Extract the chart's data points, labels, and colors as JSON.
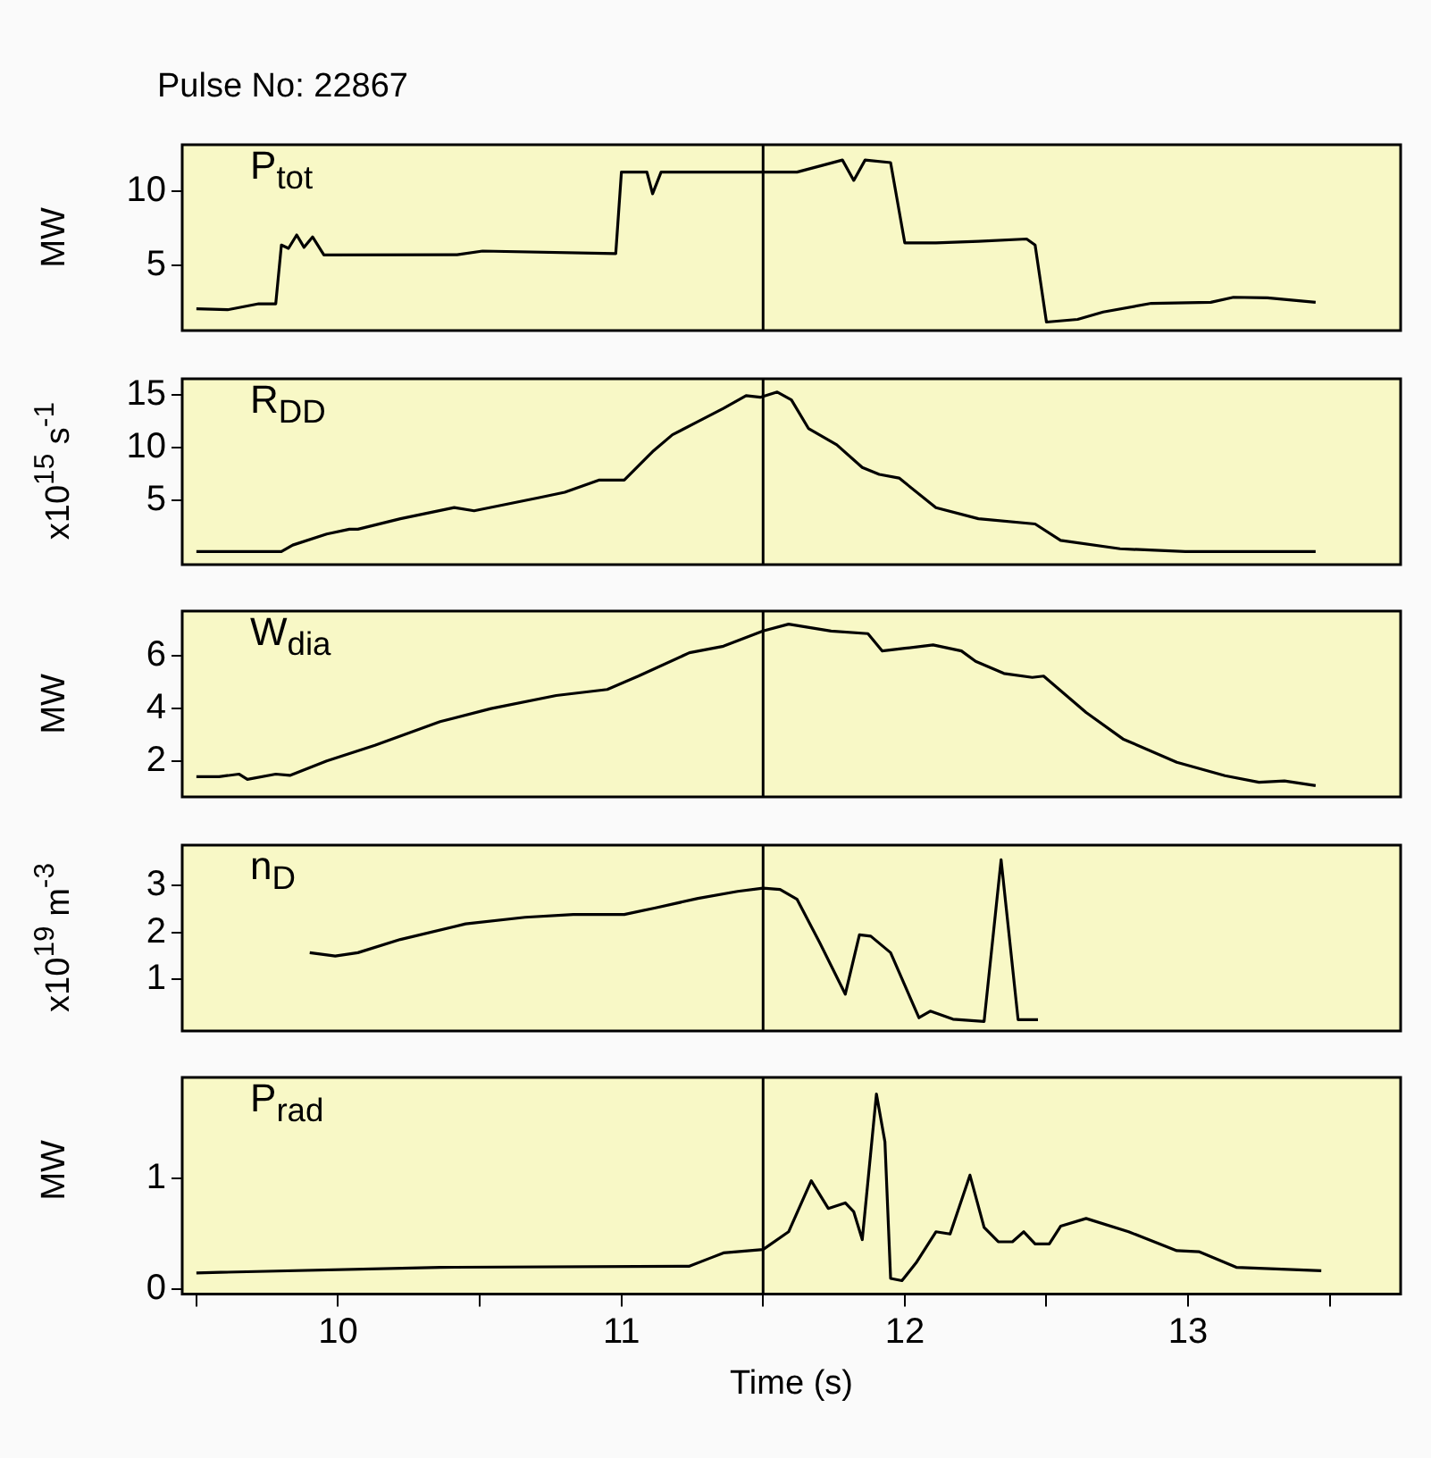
{
  "chart_data": [
    {
      "type": "line",
      "title": "Pulse No: 22867",
      "ylabel": "MW",
      "annotations": [
        "P$_{tot}$"
      ],
      "color": "#000000",
      "xlim": [
        9.45,
        13.75
      ],
      "ylim": [
        0.6,
        13.1
      ],
      "yticks": [
        5,
        10
      ],
      "tick_labels": "y",
      "ref_lines": [
        {
          "axis": "x",
          "value": 11.5
        }
      ],
      "x": [
        9.5,
        9.61,
        9.72,
        9.78,
        9.8,
        9.825,
        9.854,
        9.88,
        9.91,
        9.95,
        10.42,
        10.51,
        10.98,
        11.0,
        11.09,
        11.11,
        11.14,
        11.62,
        11.78,
        11.82,
        11.86,
        11.95,
        12.0,
        12.11,
        12.26,
        12.43,
        12.46,
        12.5,
        12.61,
        12.7,
        12.87,
        13.08,
        13.16,
        13.28,
        13.45
      ],
      "values": [
        2.07,
        2.0,
        2.4,
        2.4,
        6.35,
        6.13,
        7.03,
        6.2,
        6.9,
        5.68,
        5.7,
        5.95,
        5.77,
        11.26,
        11.26,
        9.8,
        11.26,
        11.26,
        12.07,
        10.7,
        12.07,
        11.9,
        6.5,
        6.5,
        6.6,
        6.76,
        6.35,
        1.17,
        1.35,
        1.85,
        2.43,
        2.5,
        2.84,
        2.8,
        2.5
      ]
    },
    {
      "type": "line",
      "ylabel": "x10$^{15}$ s$^{-1}$",
      "annotations": [
        "R$_{DD}$"
      ],
      "color": "#000000",
      "xlim": [
        9.45,
        13.75
      ],
      "ylim": [
        -1.1,
        16.5
      ],
      "yticks": [
        5,
        10,
        15
      ],
      "tick_labels": "y",
      "ref_lines": [
        {
          "axis": "x",
          "value": 11.5
        }
      ],
      "x": [
        9.5,
        9.8,
        9.84,
        9.96,
        10.04,
        10.07,
        10.22,
        10.41,
        10.48,
        10.71,
        10.8,
        10.92,
        11.01,
        11.11,
        11.18,
        11.27,
        11.36,
        11.44,
        11.49,
        11.55,
        11.6,
        11.66,
        11.76,
        11.85,
        11.91,
        11.98,
        12.11,
        12.26,
        12.46,
        12.55,
        12.76,
        12.99,
        13.45
      ],
      "values": [
        0.13,
        0.13,
        0.75,
        1.8,
        2.25,
        2.25,
        3.25,
        4.3,
        4.0,
        5.25,
        5.75,
        6.9,
        6.9,
        9.6,
        11.2,
        12.45,
        13.7,
        14.9,
        14.75,
        15.25,
        14.5,
        11.8,
        10.25,
        8.1,
        7.45,
        7.1,
        4.3,
        3.25,
        2.75,
        1.2,
        0.4,
        0.13,
        0.13
      ]
    },
    {
      "type": "line",
      "ylabel": "MW",
      "annotations": [
        "W$_{dia}$"
      ],
      "color": "#000000",
      "xlim": [
        9.45,
        13.75
      ],
      "ylim": [
        0.63,
        7.72
      ],
      "yticks": [
        2,
        4,
        6
      ],
      "tick_labels": "y",
      "ref_lines": [
        {
          "axis": "x",
          "value": 11.5
        }
      ],
      "x": [
        9.5,
        9.58,
        9.65,
        9.68,
        9.78,
        9.83,
        9.96,
        10.13,
        10.36,
        10.54,
        10.77,
        10.95,
        11.06,
        11.24,
        11.36,
        11.5,
        11.59,
        11.74,
        11.87,
        11.92,
        12.0,
        12.1,
        12.2,
        12.25,
        12.35,
        12.45,
        12.49,
        12.64,
        12.77,
        12.96,
        13.13,
        13.25,
        13.34,
        13.45
      ],
      "values": [
        1.4,
        1.4,
        1.5,
        1.3,
        1.5,
        1.45,
        2.0,
        2.6,
        3.5,
        4.0,
        4.5,
        4.73,
        5.24,
        6.13,
        6.38,
        6.96,
        7.22,
        6.96,
        6.86,
        6.2,
        6.3,
        6.43,
        6.2,
        5.8,
        5.34,
        5.19,
        5.24,
        3.85,
        2.84,
        1.95,
        1.44,
        1.19,
        1.24,
        1.06
      ]
    },
    {
      "type": "line",
      "ylabel": "x10$^{19}$ m$^{-3}$",
      "annotations": [
        "n$_{D}$"
      ],
      "color": "#000000",
      "xlim": [
        9.45,
        13.75
      ],
      "ylim": [
        -0.09,
        3.85
      ],
      "yticks": [
        1,
        2,
        3
      ],
      "tick_labels": "y",
      "ref_lines": [
        {
          "axis": "x",
          "value": 11.5
        }
      ],
      "x": [
        9.9,
        9.99,
        10.07,
        10.22,
        10.45,
        10.66,
        10.83,
        11.01,
        11.12,
        11.27,
        11.41,
        11.5,
        11.56,
        11.62,
        11.7,
        11.79,
        11.84,
        11.88,
        11.95,
        12.05,
        12.09,
        12.17,
        12.28,
        12.34,
        12.4,
        12.47
      ],
      "values": [
        1.57,
        1.5,
        1.57,
        1.85,
        2.18,
        2.32,
        2.38,
        2.38,
        2.52,
        2.72,
        2.87,
        2.94,
        2.91,
        2.7,
        1.78,
        0.69,
        1.95,
        1.92,
        1.57,
        0.19,
        0.33,
        0.16,
        0.11,
        3.54,
        0.15,
        0.15
      ]
    },
    {
      "type": "line",
      "ylabel": "MW",
      "xlabel": "Time (s)",
      "annotations": [
        "P$_{rad}$"
      ],
      "color": "#000000",
      "xlim": [
        9.45,
        13.75
      ],
      "ylim": [
        -0.04,
        1.91
      ],
      "yticks": [
        0,
        1
      ],
      "xticks": [
        {
          "value": 9.5,
          "label": null
        },
        10,
        {
          "value": 10.5,
          "label": null
        },
        11,
        {
          "value": 11.5,
          "label": null
        },
        12,
        {
          "value": 12.5,
          "label": null
        },
        13,
        {
          "value": 13.5,
          "label": null
        }
      ],
      "ref_lines": [
        {
          "axis": "x",
          "value": 11.5
        }
      ],
      "x": [
        9.5,
        10.36,
        11.24,
        11.31,
        11.36,
        11.5,
        11.59,
        11.67,
        11.73,
        11.79,
        11.82,
        11.85,
        11.9,
        11.93,
        11.95,
        11.99,
        12.04,
        12.11,
        12.16,
        12.23,
        12.28,
        12.33,
        12.38,
        12.42,
        12.46,
        12.51,
        12.55,
        12.64,
        12.79,
        12.96,
        13.04,
        13.17,
        13.47
      ],
      "values": [
        0.15,
        0.2,
        0.21,
        0.28,
        0.33,
        0.36,
        0.52,
        0.98,
        0.73,
        0.78,
        0.7,
        0.45,
        1.76,
        1.33,
        0.1,
        0.08,
        0.24,
        0.52,
        0.5,
        1.03,
        0.56,
        0.43,
        0.43,
        0.52,
        0.41,
        0.41,
        0.57,
        0.64,
        0.52,
        0.35,
        0.34,
        0.2,
        0.17
      ]
    }
  ]
}
